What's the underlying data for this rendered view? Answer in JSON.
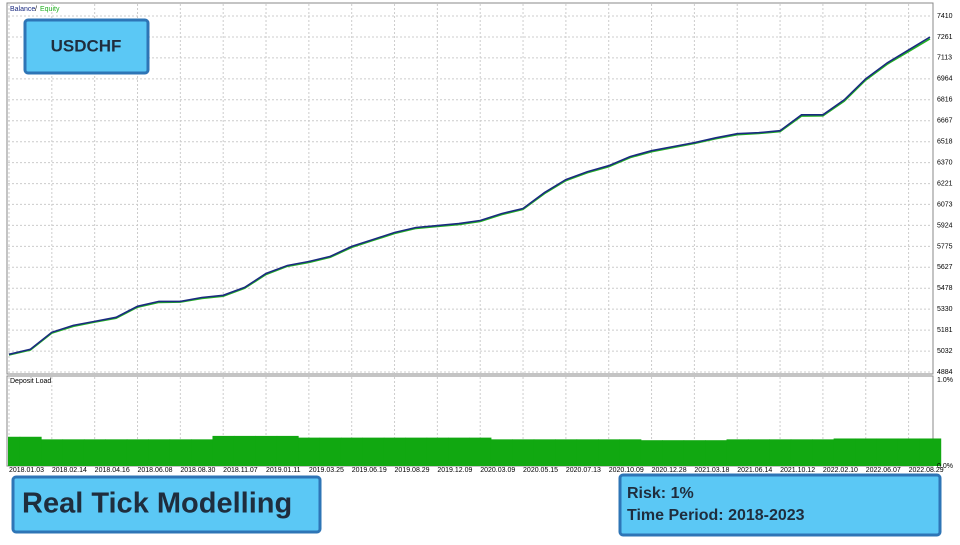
{
  "annotations": {
    "symbol": "USDCHF",
    "modelling": "Real Tick Modelling",
    "risk": "Risk: 1%",
    "period": "Time Period: 2018-2023"
  },
  "chart_data": [
    {
      "type": "line",
      "legend_separator": "/",
      "series": [
        {
          "name": "Balance",
          "color": "#1a2a80",
          "values": [
            5010,
            5045,
            5166,
            5215,
            5243,
            5272,
            5350,
            5385,
            5385,
            5413,
            5428,
            5484,
            5583,
            5640,
            5668,
            5704,
            5775,
            5824,
            5874,
            5909,
            5923,
            5937,
            5959,
            6008,
            6044,
            6157,
            6249,
            6305,
            6348,
            6412,
            6454,
            6483,
            6511,
            6546,
            6575,
            6582,
            6596,
            6709,
            6709,
            6815,
            6964,
            7077,
            7169,
            7261
          ]
        },
        {
          "name": "Equity",
          "color": "#22b022",
          "values": [
            5005,
            5040,
            5160,
            5208,
            5238,
            5266,
            5344,
            5378,
            5380,
            5406,
            5422,
            5478,
            5576,
            5634,
            5661,
            5698,
            5768,
            5818,
            5867,
            5903,
            5917,
            5930,
            5952,
            6001,
            6038,
            6150,
            6242,
            6298,
            6341,
            6405,
            6447,
            6476,
            6505,
            6539,
            6568,
            6576,
            6590,
            6700,
            6702,
            6806,
            6955,
            7068,
            7158,
            7248
          ]
        }
      ],
      "ylim": [
        4877,
        7495
      ],
      "yticks": [
        7410,
        7261,
        7113,
        6964,
        6816,
        6667,
        6518,
        6370,
        6221,
        6073,
        5924,
        5775,
        5627,
        5478,
        5330,
        5181,
        5032,
        4884
      ],
      "grid": true
    },
    {
      "type": "bar",
      "title": "Deposit Load",
      "color": "#11a811",
      "categories": [
        "2018.01.03",
        null,
        "2018.02.14",
        null,
        "2018.04.16",
        null,
        "2018.06.08",
        null,
        "2018.08.30",
        null,
        "2018.11.07",
        null,
        "2019.01.11",
        null,
        "2019.03.25",
        null,
        "2019.06.19",
        null,
        "2019.08.29",
        null,
        "2019.12.09",
        null,
        "2020.03.09",
        null,
        "2020.05.15",
        null,
        "2020.07.13",
        null,
        "2020.10.09",
        null,
        "2020.12.28",
        null,
        "2021.03.18",
        null,
        "2021.06.14",
        null,
        "2021.10.12",
        null,
        "2022.02.10",
        null,
        "2022.06.07",
        null,
        "2022.08.29",
        null
      ],
      "values": [
        0.34,
        0.34,
        0.31,
        0.31,
        0.31,
        0.31,
        0.31,
        0.31,
        0.31,
        0.31,
        0.35,
        0.35,
        0.35,
        0.35,
        0.33,
        0.33,
        0.33,
        0.33,
        0.33,
        0.33,
        0.33,
        0.33,
        0.33,
        0.31,
        0.31,
        0.31,
        0.31,
        0.31,
        0.31,
        0.31,
        0.3,
        0.3,
        0.3,
        0.3,
        0.31,
        0.31,
        0.31,
        0.31,
        0.31,
        0.32,
        0.32,
        0.32,
        0.32,
        0.32
      ],
      "ylim": [
        0,
        1
      ],
      "yticks": [
        {
          "value": 1,
          "label": "1.0%"
        },
        {
          "value": 0,
          "label": "0.0%"
        }
      ],
      "grid": true
    }
  ]
}
